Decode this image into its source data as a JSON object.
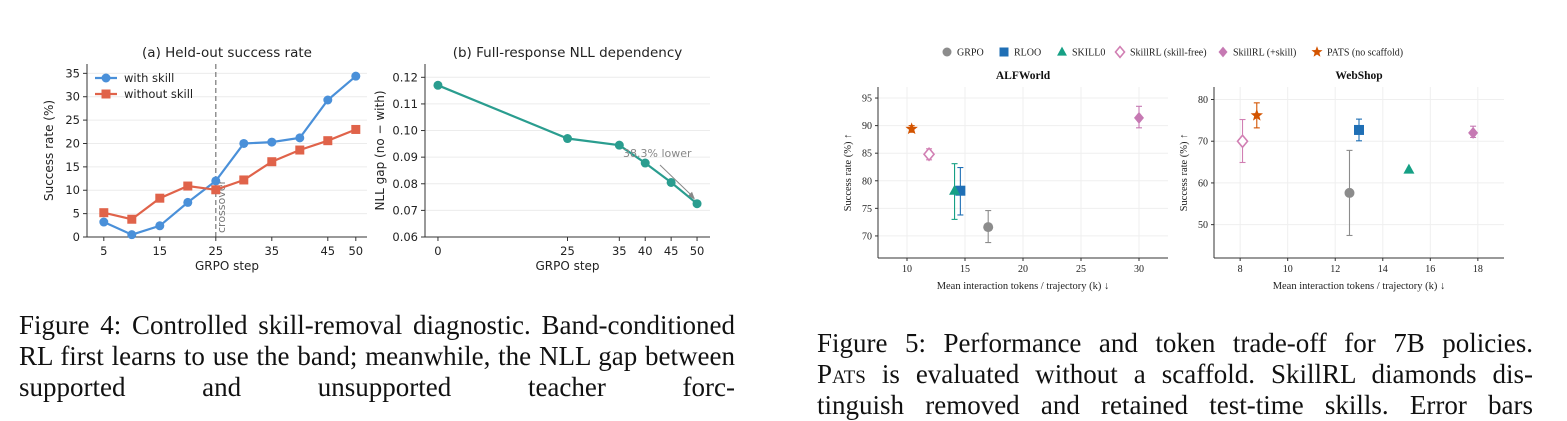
{
  "chart_data": [
    {
      "type": "line",
      "title": "(a) Held-out success rate",
      "xlabel": "GRPO step",
      "ylabel": "Success rate (%)",
      "xticks": [
        5,
        15,
        25,
        35,
        45,
        50
      ],
      "yticks": [
        0,
        5,
        10,
        15,
        20,
        25,
        30,
        35
      ],
      "xlim": [
        2,
        52
      ],
      "ylim": [
        0,
        37
      ],
      "legend_position": "top-left",
      "annotations": [
        {
          "text": "crossover",
          "x": 25
        }
      ],
      "series": [
        {
          "name": "with skill",
          "color": "#4a90d9",
          "marker": "circle",
          "x": [
            5,
            10,
            15,
            20,
            25,
            30,
            35,
            40,
            45,
            50
          ],
          "values": [
            3.2,
            0.5,
            2.4,
            7.4,
            12.0,
            20.0,
            20.3,
            21.2,
            29.3,
            34.4
          ]
        },
        {
          "name": "without skill",
          "color": "#e0634a",
          "marker": "square",
          "x": [
            5,
            10,
            15,
            20,
            25,
            30,
            35,
            40,
            45,
            50
          ],
          "values": [
            5.2,
            3.8,
            8.3,
            10.9,
            10.1,
            12.2,
            16.1,
            18.6,
            20.6,
            23.0
          ]
        }
      ]
    },
    {
      "type": "line",
      "title": "(b) Full-response NLL dependency",
      "xlabel": "GRPO step",
      "ylabel": "NLL gap (no − with)",
      "xticks": [
        0,
        25,
        35,
        40,
        45,
        50
      ],
      "yticks": [
        "0.06",
        "0.07",
        "0.08",
        "0.09",
        "0.10",
        "0.11",
        "0.12"
      ],
      "xlim": [
        -2.5,
        52.5
      ],
      "ylim": [
        0.06,
        0.125
      ],
      "annotations": [
        {
          "text": "38.3% lower"
        }
      ],
      "series": [
        {
          "color": "#2a9d8f",
          "marker": "circle",
          "x": [
            0,
            25,
            35,
            40,
            45,
            50
          ],
          "values": [
            0.117,
            0.097,
            0.0945,
            0.0878,
            0.0805,
            0.0725
          ]
        }
      ]
    },
    {
      "type": "scatter",
      "title": "ALFWorld",
      "xlabel": "Mean interaction tokens / trajectory (k) ↓",
      "ylabel": "Success rate (%) ↑",
      "xticks": [
        10,
        15,
        20,
        25,
        30
      ],
      "yticks": [
        70,
        75,
        80,
        85,
        90,
        95
      ],
      "xlim": [
        7.5,
        32.5
      ],
      "ylim": [
        66,
        97
      ],
      "grid": true,
      "legend_position": "top",
      "legend": [
        {
          "name": "GRPO",
          "color": "#8c8c8c",
          "marker": "circle"
        },
        {
          "name": "RLOO",
          "color": "#1f6fb5",
          "marker": "square"
        },
        {
          "name": "SKILL0",
          "color": "#16a085",
          "marker": "triangle"
        },
        {
          "name": "SkillRL (skill-free)",
          "color": "#d17fb3",
          "marker": "diamond-open"
        },
        {
          "name": "SkillRL (+skill)",
          "color": "#c679b3",
          "marker": "diamond"
        },
        {
          "name": "PATS (no scaffold)",
          "color": "#d35400",
          "marker": "star"
        }
      ],
      "points": [
        {
          "series": "GRPO",
          "x": 17.0,
          "y": 71.6,
          "err_low": 68.8,
          "err_high": 74.6
        },
        {
          "series": "RLOO",
          "x": 14.6,
          "y": 78.2,
          "err_low": 73.8,
          "err_high": 82.4
        },
        {
          "series": "SKILL0",
          "x": 14.1,
          "y": 78.2,
          "err_low": 73.0,
          "err_high": 83.1
        },
        {
          "series": "SkillRL (skill-free)",
          "x": 11.9,
          "y": 84.8,
          "err_low": 83.8,
          "err_high": 85.8
        },
        {
          "series": "SkillRL (+skill)",
          "x": 30.0,
          "y": 91.4,
          "err_low": 89.6,
          "err_high": 93.5
        },
        {
          "series": "PATS (no scaffold)",
          "x": 10.4,
          "y": 89.4,
          "err_low": 88.8,
          "err_high": 90.0
        }
      ]
    },
    {
      "type": "scatter",
      "title": "WebShop",
      "xlabel": "Mean interaction tokens / trajectory (k) ↓",
      "ylabel": "Success rate (%) ↑",
      "xticks": [
        8,
        10,
        12,
        14,
        16,
        18
      ],
      "yticks": [
        50,
        60,
        70,
        80
      ],
      "xlim": [
        6.9,
        19.1
      ],
      "ylim": [
        42,
        83
      ],
      "grid": true,
      "points": [
        {
          "series": "GRPO",
          "x": 12.6,
          "y": 57.6,
          "err_low": 47.4,
          "err_high": 67.8
        },
        {
          "series": "RLOO",
          "x": 13.0,
          "y": 72.7,
          "err_low": 70.1,
          "err_high": 75.3
        },
        {
          "series": "SKILL0",
          "x": 15.1,
          "y": 63.2
        },
        {
          "series": "SkillRL (skill-free)",
          "x": 8.1,
          "y": 70.0,
          "err_low": 64.9,
          "err_high": 75.2
        },
        {
          "series": "SkillRL (+skill)",
          "x": 17.8,
          "y": 72.0,
          "err_low": 70.9,
          "err_high": 73.6
        },
        {
          "series": "PATS (no scaffold)",
          "x": 8.7,
          "y": 76.2,
          "err_low": 73.2,
          "err_high": 79.2
        }
      ]
    }
  ],
  "captions": {
    "fig4": "Figure 4: Controlled skill-removal diagnostic. Band-conditioned RL first learns to use the band; meanwhile, the NLL gap between supported and unsupported teacher forc-",
    "fig5_line1": "Figure 5: Performance and token trade-off for 7B policies.",
    "fig5_pats": "Pats",
    "fig5_line2_rest": " is evaluated without a scaffold. SkillRL diamonds dis-",
    "fig5_line3": "tinguish removed and retained test-time skills. Error bars"
  }
}
